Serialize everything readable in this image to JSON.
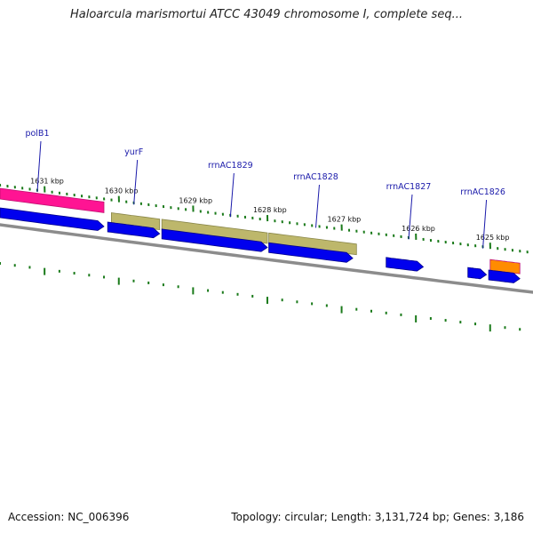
{
  "header": {
    "title": "Haloarcula marismortui ATCC 43049 chromosome I, complete seq..."
  },
  "footer": {
    "accession": "Accession: NC_006396",
    "summary": "Topology: circular; Length: 3,131,724 bp; Genes: 3,186"
  },
  "chart_data": {
    "type": "genome-map",
    "position_unit": "kbp",
    "visible_range_kbp": [
      1624.6,
      1631.6
    ],
    "orientation": "decreasing left-to-right",
    "ticks": [
      {
        "kbp": 1631,
        "label": "1631 kbp"
      },
      {
        "kbp": 1630,
        "label": "1630 kbp"
      },
      {
        "kbp": 1629,
        "label": "1629 kbp"
      },
      {
        "kbp": 1628,
        "label": "1628 kbp"
      },
      {
        "kbp": 1627,
        "label": "1627 kbp"
      },
      {
        "kbp": 1626,
        "label": "1626 kbp"
      },
      {
        "kbp": 1625,
        "label": "1625 kbp"
      }
    ],
    "gene_labels": [
      {
        "text": "polB1",
        "kbp": 1631.05
      },
      {
        "text": "yurF",
        "kbp": 1629.75
      },
      {
        "text": "rrnAC1829",
        "kbp": 1628.45
      },
      {
        "text": "rrnAC1828",
        "kbp": 1627.3
      },
      {
        "text": "rrnAC1827",
        "kbp": 1626.05
      },
      {
        "text": "rrnAC1826",
        "kbp": 1625.05
      }
    ],
    "feature_tracks": [
      {
        "name": "pink",
        "color": "#ff1493",
        "features": [
          {
            "start": 1631.6,
            "end": 1630.2
          }
        ]
      },
      {
        "name": "khaki",
        "color": "#bdb76b",
        "features": [
          {
            "start": 1630.1,
            "end": 1629.45
          },
          {
            "start": 1629.42,
            "end": 1628.0
          },
          {
            "start": 1627.98,
            "end": 1626.8
          }
        ]
      },
      {
        "name": "orange",
        "color": "#ff8c00",
        "features": [
          {
            "start": 1625.0,
            "end": 1624.6
          }
        ]
      },
      {
        "name": "blue",
        "color": "#0000ee",
        "features": [
          {
            "start": 1631.6,
            "end": 1630.2
          },
          {
            "start": 1630.15,
            "end": 1629.45
          },
          {
            "start": 1629.42,
            "end": 1628.0
          },
          {
            "start": 1627.98,
            "end": 1626.85
          },
          {
            "start": 1626.4,
            "end": 1625.9
          },
          {
            "start": 1625.3,
            "end": 1625.05
          },
          {
            "start": 1625.02,
            "end": 1624.6
          }
        ]
      }
    ],
    "colors": {
      "backbone": "#8c8c8c",
      "ticks": "#1a7a1a",
      "label": "#1a1aaa",
      "label_line": "#1a1aaa"
    }
  }
}
